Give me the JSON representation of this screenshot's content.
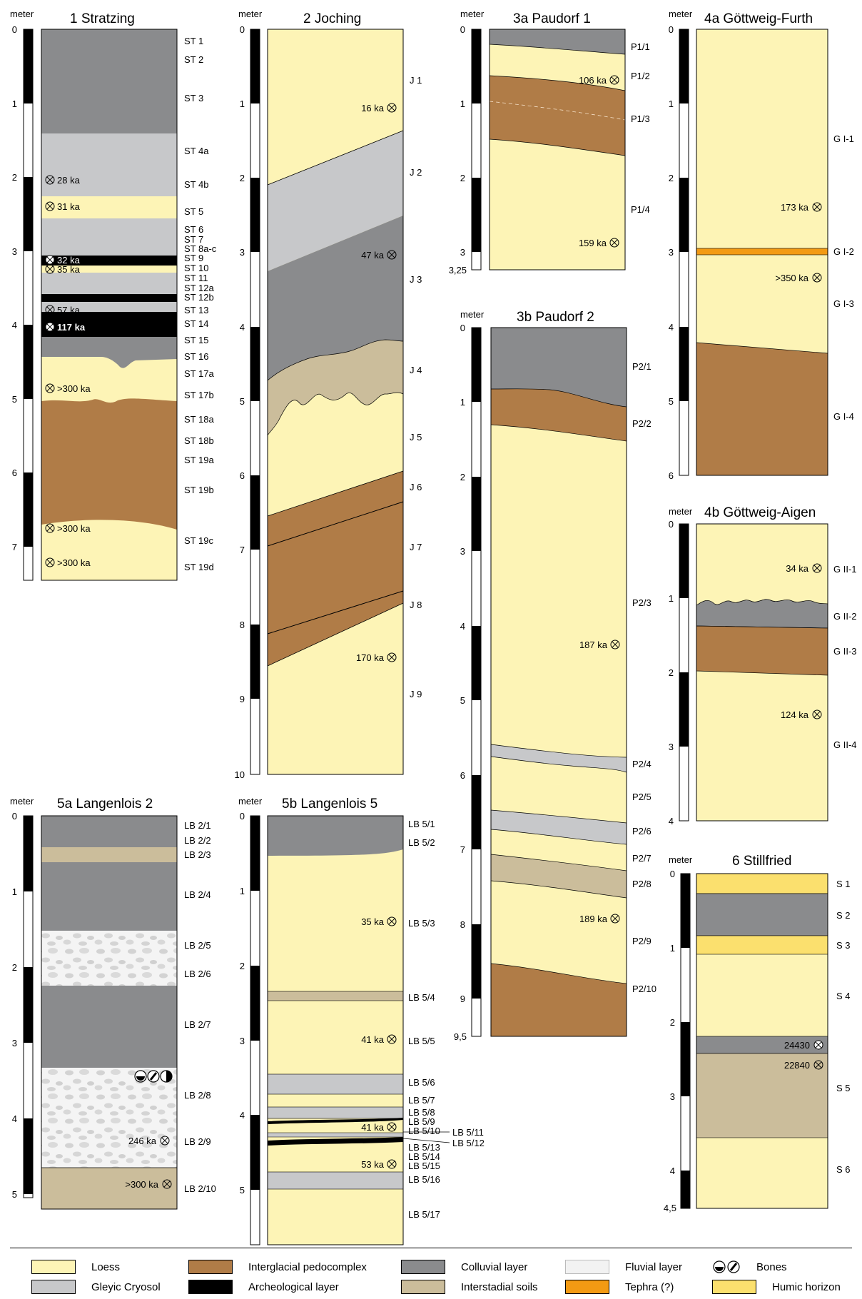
{
  "colors": {
    "loess": "#fdf4b6",
    "cryosol": "#c7c8ca",
    "interglacial": "#b07c47",
    "arch": "#000000",
    "colluvial": "#8a8b8d",
    "interstadial": "#cbbd9b",
    "fluvial": "#f2f2f2",
    "tephra": "#f39a13",
    "humic": "#fbe06e"
  },
  "profiles": {
    "p1": {
      "title": "1  Stratzing",
      "unit": "meter",
      "ticks": [
        "0",
        "1",
        "2",
        "3",
        "4",
        "5",
        "6",
        "7"
      ],
      "layers": [
        "ST 1",
        "ST 2",
        "ST 3",
        "ST 4a",
        "ST 4b",
        "ST 5",
        "ST 6",
        "ST 7",
        "ST 8a-c",
        "ST 9",
        "ST 10",
        "ST 11",
        "ST 12a",
        "ST 12b",
        "ST 13",
        "ST 14",
        "ST 15",
        "ST 16",
        "ST 17a",
        "ST 17b",
        "ST 18a",
        "ST 18b",
        "ST 19a",
        "ST 19b",
        "ST 19c",
        "ST 19d"
      ],
      "dates": [
        "28 ka",
        "31 ka",
        "32 ka",
        "35 ka",
        "57 ka",
        "117 ka",
        ">300 ka",
        ">300 ka",
        ">300 ka"
      ]
    },
    "p2": {
      "title": "2  Joching",
      "unit": "meter",
      "ticks": [
        "0",
        "1",
        "2",
        "3",
        "4",
        "5",
        "6",
        "7",
        "8",
        "9",
        "10"
      ],
      "layers": [
        "J 1",
        "J 2",
        "J 3",
        "J 4",
        "J 5",
        "J 6",
        "J 7",
        "J 8",
        "J 9"
      ],
      "dates": [
        "16 ka",
        "47 ka",
        "170 ka"
      ]
    },
    "p3a": {
      "title": "3a  Paudorf 1",
      "unit": "meter",
      "ticks": [
        "0",
        "1",
        "2",
        "3",
        "3,25"
      ],
      "layers": [
        "P1/1",
        "P1/2",
        "P1/3",
        "P1/4"
      ],
      "dates": [
        "106 ka",
        "159 ka"
      ]
    },
    "p3b": {
      "title": "3b  Paudorf 2",
      "unit": "meter",
      "ticks": [
        "0",
        "1",
        "2",
        "3",
        "4",
        "5",
        "6",
        "7",
        "8",
        "9",
        "9,5"
      ],
      "layers": [
        "P2/1",
        "P2/2",
        "P2/3",
        "P2/4",
        "P2/5",
        "P2/6",
        "P2/7",
        "P2/8",
        "P2/9",
        "P2/10"
      ],
      "dates": [
        "187 ka",
        "189 ka"
      ]
    },
    "p4a": {
      "title": "4a  Göttweig-Furth",
      "unit": "meter",
      "ticks": [
        "0",
        "1",
        "2",
        "3",
        "4",
        "5",
        "6"
      ],
      "layers": [
        "G I-1",
        "G I-2",
        "G I-3",
        "G I-4"
      ],
      "dates": [
        "173 ka",
        ">350 ka"
      ]
    },
    "p4b": {
      "title": "4b  Göttweig-Aigen",
      "unit": "meter",
      "ticks": [
        "0",
        "1",
        "2",
        "3",
        "4"
      ],
      "layers": [
        "G II-1",
        "G II-2",
        "G II-3",
        "G II-4"
      ],
      "dates": [
        "34 ka",
        "124 ka"
      ]
    },
    "p5a": {
      "title": "5a  Langenlois 2",
      "unit": "meter",
      "ticks": [
        "0",
        "1",
        "2",
        "3",
        "4",
        "5"
      ],
      "layers": [
        "LB 2/1",
        "LB 2/2",
        "LB 2/3",
        "LB 2/4",
        "LB 2/5",
        "LB 2/6",
        "LB 2/7",
        "LB 2/8",
        "LB 2/9",
        "LB 2/10"
      ],
      "dates": [
        "246 ka",
        ">300 ka"
      ]
    },
    "p5b": {
      "title": "5b  Langenlois 5",
      "unit": "meter",
      "ticks": [
        "0",
        "1",
        "2",
        "3",
        "4",
        "5"
      ],
      "layers": [
        "LB 5/1",
        "LB 5/2",
        "LB 5/3",
        "LB 5/4",
        "LB 5/5",
        "LB 5/6",
        "LB 5/7",
        "LB 5/8",
        "LB 5/9",
        "LB 5/10",
        "LB 5/11",
        "LB 5/12",
        "LB 5/13",
        "LB 5/14",
        "LB 5/15",
        "LB 5/16",
        "LB 5/17"
      ],
      "dates": [
        "35 ka",
        "41 ka",
        "41 ka",
        "53 ka"
      ]
    },
    "p6": {
      "title": "6  Stillfried",
      "unit": "meter",
      "ticks": [
        "0",
        "1",
        "2",
        "3",
        "4",
        "4,5"
      ],
      "layers": [
        "S 1",
        "S 2",
        "S 3",
        "S 4",
        "S 5",
        "S 6"
      ],
      "dates": [
        "24430",
        "22840"
      ]
    }
  },
  "legend": {
    "loess": "Loess",
    "cryosol": "Gleyic Cryosol",
    "interglacial": "Interglacial pedocomplex",
    "arch": "Archeological layer",
    "colluvial": "Colluvial layer",
    "interstadial": "Interstadial soils",
    "fluvial": "Fluvial layer",
    "tephra": "Tephra (?)",
    "bones": "Bones",
    "humic": "Humic horizon"
  }
}
